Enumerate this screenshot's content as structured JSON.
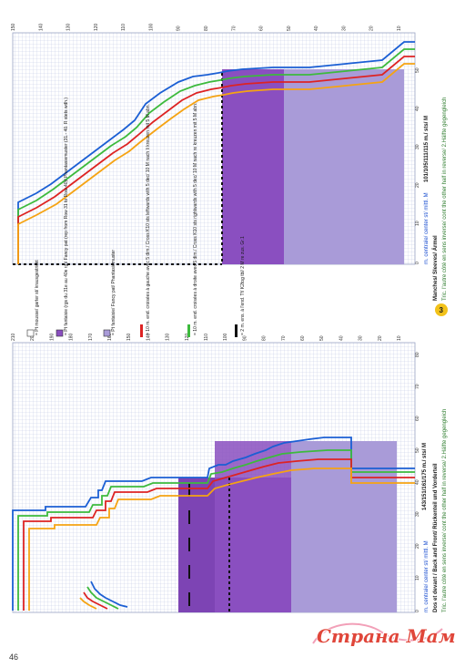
{
  "page_number": "46",
  "watermark": {
    "text": "Страна Мам"
  },
  "front_back_chart": {
    "title": "Dos et devant / Back and Front/ Rückenteil und Vorderteil",
    "stitch_counts": "143/151/161/175 m./ sts/ M",
    "instruction": "Tric. l'autre côté en sens inverse/ cont the other half in reverse/ 2.Hälfte gegengleich",
    "center_label": "m. centrale/ center st/ mittl. M",
    "row_ticks": [
      "10",
      "20",
      "30",
      "40",
      "50",
      "60",
      "70",
      "80",
      "90",
      "100",
      "110",
      "120",
      "130",
      "140",
      "150",
      "160",
      "170",
      "180",
      "190",
      "200",
      "210"
    ],
    "stitch_ticks": [
      "0",
      "10",
      "20",
      "30",
      "40",
      "50",
      "60",
      "70",
      "80"
    ]
  },
  "sleeve_chart": {
    "badge": "3",
    "title": "Manches/ Sleeves/ Ärmel",
    "stitch_counts": "101/105/111/115 m./ sts/ M",
    "instruction": "Tric. l'autre côté en sens inverse/ cont the other half in reverse/ 2.Hälfte gegengleich",
    "center_label": "m. centrale/ center st/ mittl. M",
    "row_ticks": [
      "10",
      "20",
      "30",
      "40",
      "50",
      "60",
      "70",
      "80",
      "90",
      "100",
      "110",
      "120",
      "130",
      "140",
      "150"
    ],
    "stitch_ticks": [
      "0",
      "10",
      "20",
      "30",
      "40",
      "50"
    ]
  },
  "legend": {
    "items": [
      {
        "symbol": "white-box",
        "text": "= Pt mousse/ garter st/ krausgestrickt"
      },
      {
        "symbol": "dark-purple-box",
        "text": "= Pt fantaisie (rgs du 31e au 40e rg)/ Fancy pat (rep from Row 31 to Row 40)/ Phantasiemuster (31.- 40. R stets wdh.)"
      },
      {
        "symbol": "light-purple-box",
        "text": "= Pt fantaisie/ Fancy pat/ Phantasiemuster"
      },
      {
        "symbol": "red-bar",
        "text": "= 10 m. end. croisées à gauche avec 5 dim./ Cross K10 sts leftwards with 5 dec/ 10 M nach li kreuzen mit 5 M abn."
      },
      {
        "symbol": "green-bar",
        "text": "= 10 m. end. croisées à droite avec 5 dim./ Cross K10 sts rightwards with 5 dec/ 10 M nach re kreuzen mit 5 M abn."
      },
      {
        "symbol": "black-dash",
        "text": "= 2 m. ens. à l'end. Tf/ K2tog tbl/ 2 M re zus. Gr.1"
      }
    ]
  },
  "colors": {
    "background": "#ffffff",
    "grid": "#c4cbe6",
    "dark_purple": "#8a4fc0",
    "light_purple": "#a99bd8",
    "size_1": "#f5a313",
    "size_2": "#dd2323",
    "size_3": "#3dba3d",
    "size_4": "#1b5fd4",
    "text": "#1a1a1a",
    "center_label": "#1a4ed0",
    "instruction": "#2f7d2f",
    "instruction_accent": "#e25a1e",
    "badge": "#f2c21a"
  }
}
